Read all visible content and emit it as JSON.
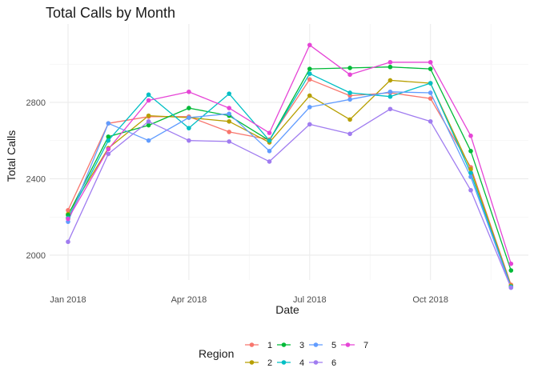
{
  "chart_data": {
    "type": "line",
    "title": "Total Calls by Month",
    "xlabel": "Date",
    "ylabel": "Total Calls",
    "x": [
      "2018-01",
      "2018-02",
      "2018-03",
      "2018-04",
      "2018-05",
      "2018-06",
      "2018-07",
      "2018-08",
      "2018-09",
      "2018-10",
      "2018-11",
      "2018-12"
    ],
    "x_ticks": [
      {
        "label": "Jan 2018",
        "month": 0
      },
      {
        "label": "Apr 2018",
        "month": 3
      },
      {
        "label": "Jul 2018",
        "month": 6
      },
      {
        "label": "Oct 2018",
        "month": 9
      }
    ],
    "y_ticks": [
      2000,
      2400,
      2800
    ],
    "xlim": [
      "2017-12",
      "2019-01"
    ],
    "ylim": [
      1870,
      3210
    ],
    "grid": true,
    "legend": {
      "title": "Region",
      "placement": "bottom"
    },
    "series": [
      {
        "name": "1",
        "color": "#F8766D",
        "values": [
          2235,
          2690,
          2725,
          2725,
          2645,
          2605,
          2920,
          2835,
          2850,
          2820,
          2460,
          1845
        ]
      },
      {
        "name": "2",
        "color": "#B79F00",
        "values": [
          2215,
          2560,
          2730,
          2720,
          2700,
          2590,
          2835,
          2710,
          2915,
          2900,
          2450,
          1840
        ]
      },
      {
        "name": "3",
        "color": "#00BA38",
        "values": [
          2210,
          2620,
          2680,
          2770,
          2730,
          2600,
          2975,
          2980,
          2985,
          2975,
          2545,
          1920
        ]
      },
      {
        "name": "4",
        "color": "#00BFC4",
        "values": [
          2195,
          2600,
          2840,
          2665,
          2845,
          2600,
          2950,
          2850,
          2830,
          2900,
          2430,
          1835
        ]
      },
      {
        "name": "5",
        "color": "#619CFF",
        "values": [
          2175,
          2690,
          2600,
          2720,
          2740,
          2545,
          2775,
          2815,
          2855,
          2850,
          2410,
          1830
        ]
      },
      {
        "name": "6",
        "color": "#A07CF0",
        "values": [
          2070,
          2530,
          2700,
          2600,
          2595,
          2490,
          2685,
          2635,
          2765,
          2700,
          2340,
          1830
        ]
      },
      {
        "name": "7",
        "color": "#E645D6",
        "values": [
          2190,
          2555,
          2810,
          2855,
          2770,
          2640,
          3100,
          2945,
          3010,
          3010,
          2625,
          1955
        ]
      }
    ]
  }
}
